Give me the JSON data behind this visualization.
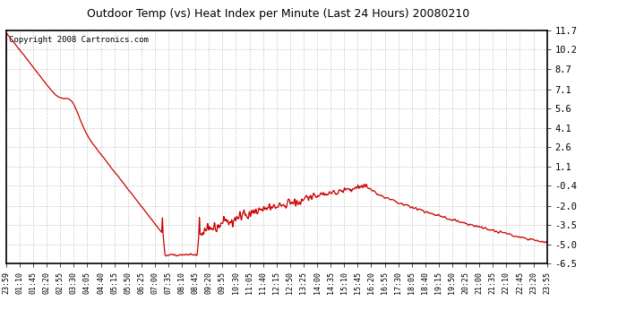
{
  "title": "Outdoor Temp (vs) Heat Index per Minute (Last 24 Hours) 20080210",
  "copyright": "Copyright 2008 Cartronics.com",
  "line_color": "#cc0000",
  "bg_color": "#ffffff",
  "plot_bg_color": "#ffffff",
  "grid_color": "#cccccc",
  "yticks": [
    11.7,
    10.2,
    8.7,
    7.1,
    5.6,
    4.1,
    2.6,
    1.1,
    -0.4,
    -2.0,
    -3.5,
    -5.0,
    -6.5
  ],
  "ylim": [
    -6.5,
    11.7
  ],
  "xtick_labels": [
    "23:59",
    "01:10",
    "01:45",
    "02:20",
    "02:55",
    "03:30",
    "04:05",
    "04:40",
    "05:15",
    "05:50",
    "06:25",
    "07:00",
    "07:35",
    "08:10",
    "08:45",
    "09:20",
    "09:55",
    "10:30",
    "11:05",
    "11:40",
    "12:15",
    "12:50",
    "13:25",
    "14:00",
    "14:35",
    "15:10",
    "15:45",
    "16:20",
    "16:55",
    "17:30",
    "18:05",
    "18:40",
    "19:15",
    "19:50",
    "20:25",
    "21:00",
    "21:35",
    "22:10",
    "22:45",
    "23:20",
    "23:55"
  ]
}
